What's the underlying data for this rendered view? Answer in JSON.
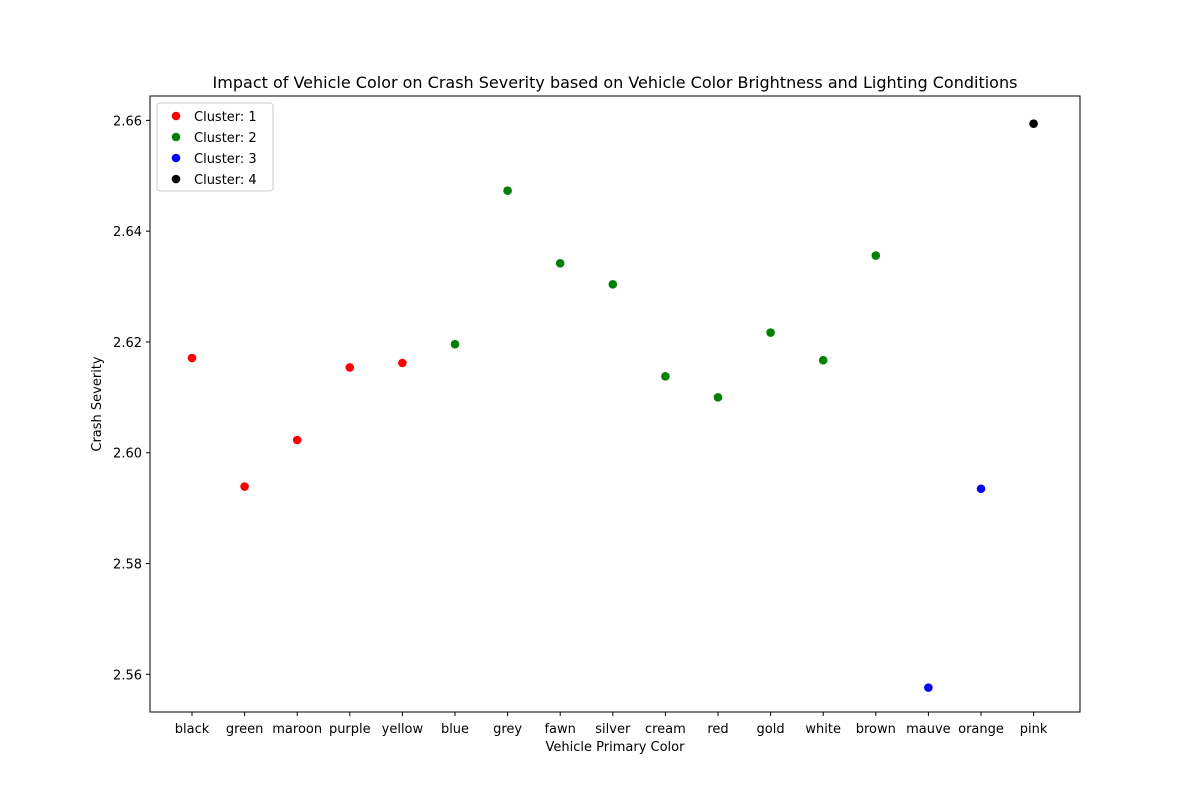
{
  "chart_data": {
    "type": "scatter",
    "title": "Impact of Vehicle Color on Crash Severity based on Vehicle Color Brightness and Lighting Conditions",
    "xlabel": "Vehicle Primary Color",
    "ylabel": "Crash Severity",
    "categories": [
      "black",
      "green",
      "maroon",
      "purple",
      "yellow",
      "blue",
      "grey",
      "fawn",
      "silver",
      "cream",
      "red",
      "gold",
      "white",
      "brown",
      "mauve",
      "orange",
      "pink"
    ],
    "ylim": [
      2.5532,
      2.6644
    ],
    "yticks": [
      2.56,
      2.58,
      2.6,
      2.62,
      2.64,
      2.66
    ],
    "ytick_labels": [
      "2.56",
      "2.58",
      "2.60",
      "2.62",
      "2.64",
      "2.66"
    ],
    "grid": false,
    "legend_position": "top-left",
    "series": [
      {
        "name": "Cluster: 1",
        "color": "#ff0000",
        "points": [
          {
            "x": "black",
            "y": 2.6171
          },
          {
            "x": "green",
            "y": 2.5939
          },
          {
            "x": "maroon",
            "y": 2.6023
          },
          {
            "x": "purple",
            "y": 2.6154
          },
          {
            "x": "yellow",
            "y": 2.6162
          }
        ]
      },
      {
        "name": "Cluster: 2",
        "color": "#008000",
        "points": [
          {
            "x": "blue",
            "y": 2.6196
          },
          {
            "x": "grey",
            "y": 2.6473
          },
          {
            "x": "fawn",
            "y": 2.6342
          },
          {
            "x": "silver",
            "y": 2.6304
          },
          {
            "x": "cream",
            "y": 2.6138
          },
          {
            "x": "red",
            "y": 2.61
          },
          {
            "x": "gold",
            "y": 2.6217
          },
          {
            "x": "white",
            "y": 2.6167
          },
          {
            "x": "brown",
            "y": 2.6356
          }
        ]
      },
      {
        "name": "Cluster: 3",
        "color": "#0000ff",
        "points": [
          {
            "x": "mauve",
            "y": 2.5576
          },
          {
            "x": "orange",
            "y": 2.5935
          }
        ]
      },
      {
        "name": "Cluster: 4",
        "color": "#000000",
        "points": [
          {
            "x": "pink",
            "y": 2.6594
          }
        ]
      }
    ]
  }
}
